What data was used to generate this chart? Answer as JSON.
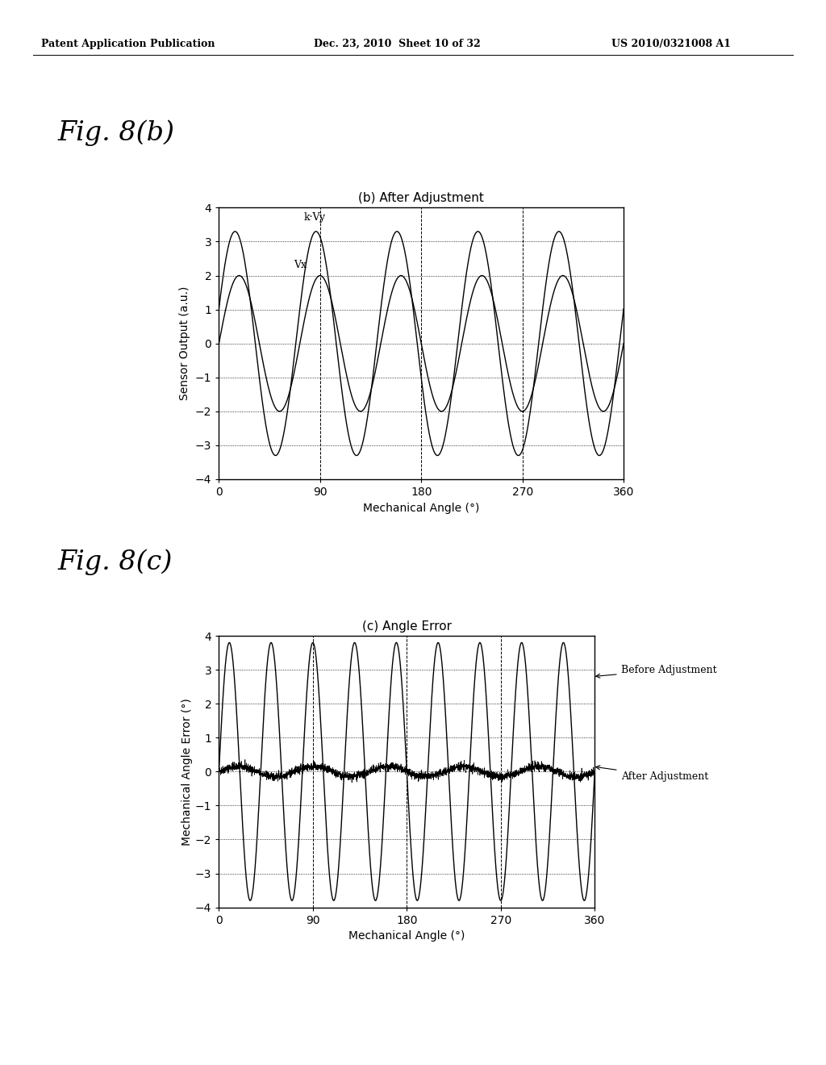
{
  "header_left": "Patent Application Publication",
  "header_mid": "Dec. 23, 2010  Sheet 10 of 32",
  "header_right": "US 2010/0321008 A1",
  "fig_b_label": "Fig. 8(b)",
  "fig_c_label": "Fig. 8(c)",
  "chart_b_title": "(b) After Adjustment",
  "chart_c_title": "(c) Angle Error",
  "xlabel": "Mechanical Angle (°)",
  "ylabel_b": "Sensor Output (a.u.)",
  "ylabel_c": "Mechanical Angle Error (°)",
  "xlim": [
    0,
    360
  ],
  "ylim_b": [
    -4,
    4
  ],
  "ylim_c": [
    -4,
    4
  ],
  "xticks": [
    0,
    90,
    180,
    270,
    360
  ],
  "yticks_b": [
    -4,
    -3,
    -2,
    -1,
    0,
    1,
    2,
    3,
    4
  ],
  "yticks_c": [
    -4,
    -3,
    -2,
    -1,
    0,
    1,
    2,
    3,
    4
  ],
  "vx_amplitude": 2.0,
  "vx_frequency": 5,
  "kvy_amplitude": 3.3,
  "kvy_phase_deg": 18,
  "error_before_amplitude": 3.8,
  "error_before_frequency": 9,
  "error_after_amplitude": 0.15,
  "error_after_noise_scale": 0.06,
  "label_vx": "Vx",
  "label_kvy": "k·Vy",
  "label_before": "Before Adjustment",
  "label_after": "After Adjustment",
  "background_color": "#ffffff",
  "line_color": "#000000",
  "fig_label_fontsize": 24,
  "chart_title_fontsize": 11,
  "tick_fontsize": 10,
  "axis_label_fontsize": 10,
  "annotation_fontsize": 9,
  "header_fontsize": 9
}
